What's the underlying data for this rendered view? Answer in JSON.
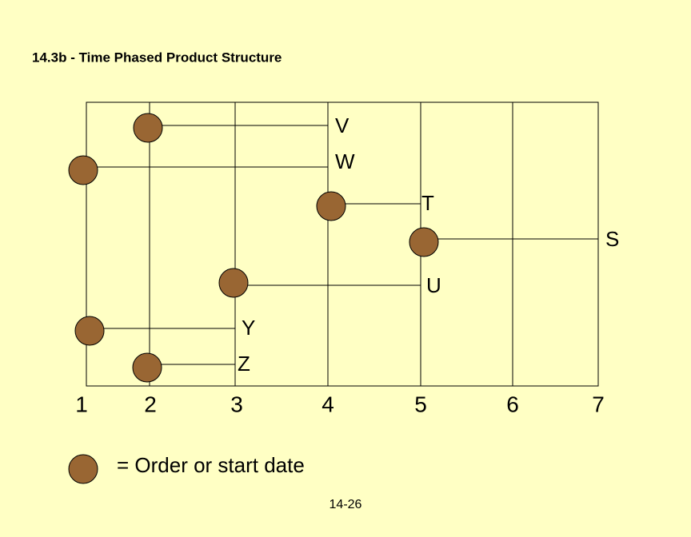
{
  "header": {
    "title": "14.3b - Time Phased Product Structure"
  },
  "axis": {
    "labels": [
      "1",
      "2",
      "3",
      "4",
      "5",
      "6",
      "7"
    ]
  },
  "nodes": [
    {
      "label": "V"
    },
    {
      "label": "W"
    },
    {
      "label": "T"
    },
    {
      "label": "S"
    },
    {
      "label": "U"
    },
    {
      "label": "Y"
    },
    {
      "label": "Z"
    }
  ],
  "legend": {
    "label": "= Order or start date"
  },
  "footer": {
    "page": "14-26"
  }
}
